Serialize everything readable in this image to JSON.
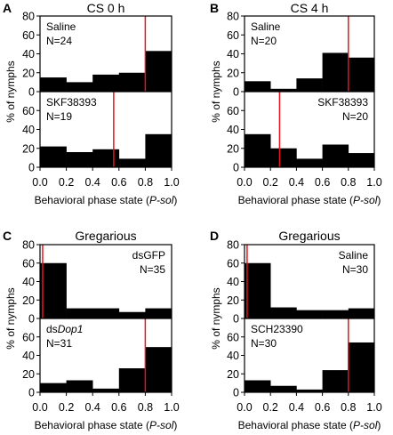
{
  "figure": {
    "y_axis_label": "% of nymphs",
    "x_axis_label_prefix": "Behavioral phase state (",
    "x_axis_label_italic": "P-sol",
    "x_axis_label_suffix": ")",
    "bar_color": "#000000",
    "threshold_line_color": "#e8141c"
  },
  "chart_data": [
    {
      "panel_label": "A",
      "title": "CS 0 h",
      "type": "bar",
      "x_bins": [
        0.1,
        0.3,
        0.5,
        0.7,
        0.9
      ],
      "xlim": [
        0.0,
        1.0
      ],
      "x_ticks": [
        "0.0",
        "0.2",
        "0.4",
        "0.6",
        "0.8",
        "1.0"
      ],
      "ylim": [
        0,
        80
      ],
      "y_ticks": [
        "0",
        "20",
        "40",
        "60",
        "80"
      ],
      "series": [
        {
          "label_parts": [
            "Saline"
          ],
          "label_italic": [
            false
          ],
          "n_label": "N=24",
          "label_align": "left",
          "values": [
            15,
            10,
            18,
            20,
            43
          ],
          "threshold": 0.8
        },
        {
          "label_parts": [
            "SKF38393"
          ],
          "label_italic": [
            false
          ],
          "n_label": "N=19",
          "label_align": "left",
          "values": [
            22,
            16,
            19,
            9,
            35
          ],
          "threshold": 0.56
        }
      ]
    },
    {
      "panel_label": "B",
      "title": "CS 4 h",
      "type": "bar",
      "x_bins": [
        0.1,
        0.3,
        0.5,
        0.7,
        0.9
      ],
      "xlim": [
        0.0,
        1.0
      ],
      "x_ticks": [
        "0.0",
        "0.2",
        "0.4",
        "0.6",
        "0.8",
        "1.0"
      ],
      "ylim": [
        0,
        80
      ],
      "y_ticks": [
        "0",
        "20",
        "40",
        "60",
        "80"
      ],
      "series": [
        {
          "label_parts": [
            "Saline"
          ],
          "label_italic": [
            false
          ],
          "n_label": "N=20",
          "label_align": "left",
          "values": [
            11,
            3,
            14,
            41,
            36
          ],
          "threshold": 0.8
        },
        {
          "label_parts": [
            "SKF38393"
          ],
          "label_italic": [
            false
          ],
          "n_label": "N=20",
          "label_align": "right",
          "values": [
            35,
            20,
            9,
            24,
            15
          ],
          "threshold": 0.27
        }
      ]
    },
    {
      "panel_label": "C",
      "title": "Gregarious",
      "type": "bar",
      "x_bins": [
        0.1,
        0.3,
        0.5,
        0.7,
        0.9
      ],
      "xlim": [
        0.0,
        1.0
      ],
      "x_ticks": [
        "0.0",
        "0.2",
        "0.4",
        "0.6",
        "0.8",
        "1.0"
      ],
      "ylim": [
        0,
        80
      ],
      "y_ticks": [
        "0",
        "20",
        "40",
        "60",
        "80"
      ],
      "series": [
        {
          "label_parts": [
            "dsGFP"
          ],
          "label_italic": [
            false
          ],
          "n_label": "N=35",
          "label_align": "right",
          "values": [
            60,
            11,
            11,
            7,
            11
          ],
          "threshold": 0.02
        },
        {
          "label_parts": [
            "ds",
            "Dop1"
          ],
          "label_italic": [
            false,
            true
          ],
          "n_label": "N=31",
          "label_align": "left",
          "values": [
            10,
            13,
            4,
            26,
            49
          ],
          "threshold": 0.8
        }
      ]
    },
    {
      "panel_label": "D",
      "title": "Gregarious",
      "type": "bar",
      "x_bins": [
        0.1,
        0.3,
        0.5,
        0.7,
        0.9
      ],
      "xlim": [
        0.0,
        1.0
      ],
      "x_ticks": [
        "0.0",
        "0.2",
        "0.4",
        "0.6",
        "0.8",
        "1.0"
      ],
      "ylim": [
        0,
        80
      ],
      "y_ticks": [
        "0",
        "20",
        "40",
        "60",
        "80"
      ],
      "series": [
        {
          "label_parts": [
            "Saline"
          ],
          "label_italic": [
            false
          ],
          "n_label": "N=30",
          "label_align": "right",
          "values": [
            60,
            12,
            9,
            9,
            11
          ],
          "threshold": 0.02
        },
        {
          "label_parts": [
            "SCH23390"
          ],
          "label_italic": [
            false
          ],
          "n_label": "N=30",
          "label_align": "left",
          "values": [
            13,
            7,
            3,
            24,
            54
          ],
          "threshold": 0.8
        }
      ]
    }
  ]
}
